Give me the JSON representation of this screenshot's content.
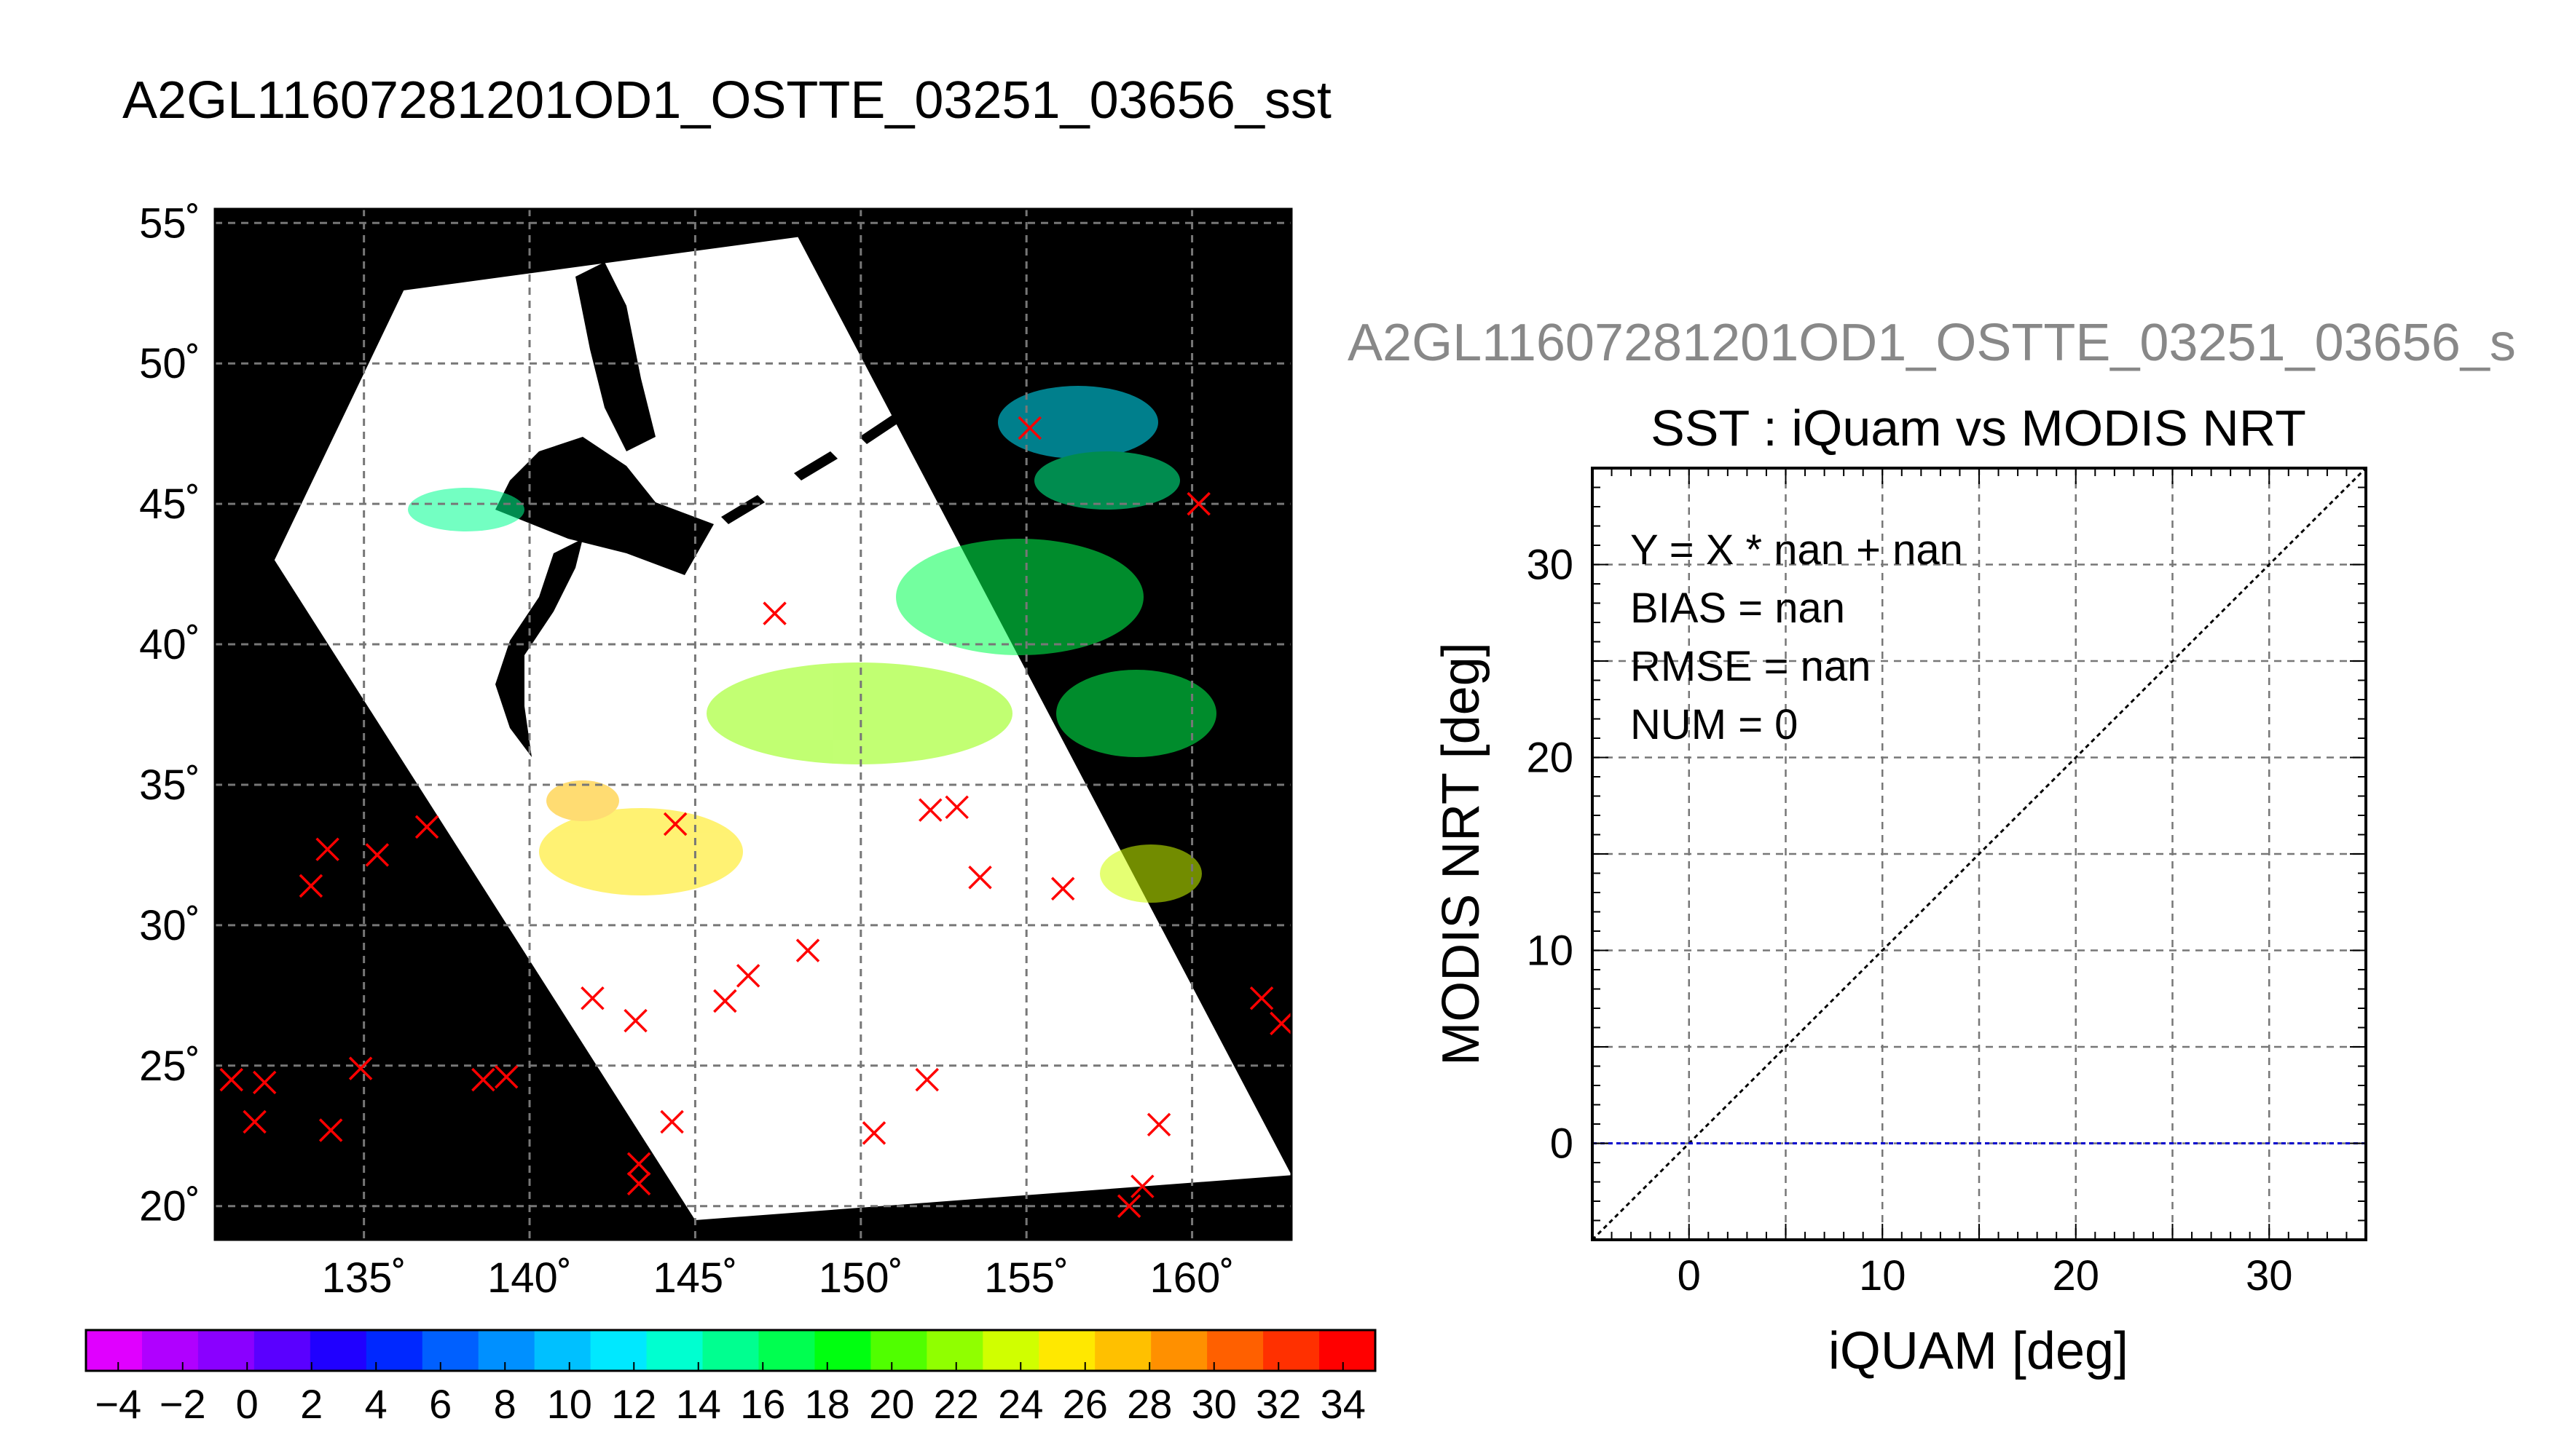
{
  "page_title": "A2GL11607281201OD1_OSTTE_03251_03656_sst",
  "colors": {
    "marker": "#ff0000",
    "zero_line": "#0000cc",
    "grid": "#777777",
    "land": "#000000",
    "swath": "#ffffff"
  },
  "chart_data": [
    {
      "type": "map",
      "title": "A2GL11607281201OD1_OSTTE_03251_03656_sst",
      "xlim": [
        130.5,
        163
      ],
      "ylim": [
        18.8,
        55.5
      ],
      "x_ticks": [
        135,
        140,
        145,
        150,
        155,
        160
      ],
      "y_ticks": [
        20,
        25,
        30,
        35,
        40,
        45,
        50,
        55
      ],
      "x_tick_labels": [
        "135˚",
        "140˚",
        "145˚",
        "150˚",
        "155˚",
        "160˚"
      ],
      "y_tick_labels": [
        "20˚",
        "25˚",
        "30˚",
        "35˚",
        "40˚",
        "45˚",
        "50˚",
        "55˚"
      ],
      "grid": true,
      "swath_corners": [
        [
          136.2,
          52.6
        ],
        [
          148.1,
          54.5
        ],
        [
          163.0,
          21.1
        ],
        [
          145.0,
          19.5
        ],
        [
          132.3,
          43.0
        ]
      ],
      "markers": [
        {
          "lon": 131.0,
          "lat": 24.5
        },
        {
          "lon": 132.0,
          "lat": 24.4
        },
        {
          "lon": 131.7,
          "lat": 23.0
        },
        {
          "lon": 134.0,
          "lat": 22.7
        },
        {
          "lon": 134.9,
          "lat": 24.9
        },
        {
          "lon": 138.6,
          "lat": 24.5
        },
        {
          "lon": 139.3,
          "lat": 24.6
        },
        {
          "lon": 133.4,
          "lat": 31.4
        },
        {
          "lon": 133.9,
          "lat": 32.7
        },
        {
          "lon": 135.4,
          "lat": 32.5
        },
        {
          "lon": 136.9,
          "lat": 33.5
        },
        {
          "lon": 141.9,
          "lat": 27.4
        },
        {
          "lon": 143.2,
          "lat": 26.6
        },
        {
          "lon": 144.3,
          "lat": 23.0
        },
        {
          "lon": 143.3,
          "lat": 21.5
        },
        {
          "lon": 143.3,
          "lat": 20.8
        },
        {
          "lon": 144.4,
          "lat": 33.6
        },
        {
          "lon": 145.9,
          "lat": 27.3
        },
        {
          "lon": 146.6,
          "lat": 28.2
        },
        {
          "lon": 148.4,
          "lat": 29.1
        },
        {
          "lon": 147.4,
          "lat": 41.1
        },
        {
          "lon": 152.1,
          "lat": 34.1
        },
        {
          "lon": 152.9,
          "lat": 34.2
        },
        {
          "lon": 153.6,
          "lat": 31.7
        },
        {
          "lon": 156.1,
          "lat": 31.3
        },
        {
          "lon": 155.1,
          "lat": 47.7
        },
        {
          "lon": 160.2,
          "lat": 45.0
        },
        {
          "lon": 152.0,
          "lat": 24.5
        },
        {
          "lon": 150.4,
          "lat": 22.6
        },
        {
          "lon": 159.0,
          "lat": 22.9
        },
        {
          "lon": 158.5,
          "lat": 20.7
        },
        {
          "lon": 158.1,
          "lat": 20.0
        },
        {
          "lon": 162.1,
          "lat": 27.4
        },
        {
          "lon": 162.7,
          "lat": 26.5
        }
      ]
    },
    {
      "type": "colorbar",
      "range": [
        -5,
        35
      ],
      "tick_values": [
        -4,
        -2,
        0,
        2,
        4,
        6,
        8,
        10,
        12,
        14,
        16,
        18,
        20,
        22,
        24,
        26,
        28,
        30,
        32,
        34
      ],
      "tick_labels": [
        "−4",
        "−2",
        "0",
        "2",
        "4",
        "6",
        "8",
        "10",
        "12",
        "14",
        "16",
        "18",
        "20",
        "22",
        "24",
        "26",
        "28",
        "30",
        "32",
        "34"
      ],
      "colors": [
        "#e000ff",
        "#b000ff",
        "#8a00ff",
        "#5a00ff",
        "#2000ff",
        "#0028ff",
        "#0060ff",
        "#0090ff",
        "#00c0ff",
        "#00e8ff",
        "#00ffd0",
        "#00ff90",
        "#00ff50",
        "#00ff10",
        "#50ff00",
        "#90ff00",
        "#d0ff00",
        "#ffe800",
        "#ffc000",
        "#ff9000",
        "#ff6000",
        "#ff3000",
        "#ff0000"
      ]
    },
    {
      "type": "scatter",
      "overlay_title": "A2GL11607281201OD1_OSTTE_03251_03656_s",
      "title": "SST : iQuam vs MODIS NRT",
      "xlabel": "iQUAM [deg]",
      "ylabel": "MODIS NRT [deg]",
      "xlim": [
        -5,
        35
      ],
      "ylim": [
        -5,
        35
      ],
      "x_ticks": [
        0,
        10,
        20,
        30
      ],
      "y_ticks": [
        0,
        10,
        20,
        30
      ],
      "grid": true,
      "annotations": [
        "Y = X * nan + nan",
        "BIAS = nan",
        "RMSE = nan",
        "NUM = 0"
      ],
      "series": [],
      "reference_lines": [
        {
          "from": [
            -5,
            -5
          ],
          "to": [
            35,
            35
          ],
          "color": "#000000"
        },
        {
          "from": [
            -5,
            0
          ],
          "to": [
            35,
            0
          ],
          "color": "#0000cc"
        }
      ]
    }
  ]
}
